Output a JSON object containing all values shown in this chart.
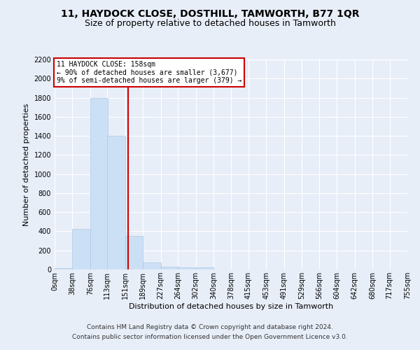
{
  "title": "11, HAYDOCK CLOSE, DOSTHILL, TAMWORTH, B77 1QR",
  "subtitle": "Size of property relative to detached houses in Tamworth",
  "xlabel": "Distribution of detached houses by size in Tamworth",
  "ylabel": "Number of detached properties",
  "bin_labels": [
    "0sqm",
    "38sqm",
    "76sqm",
    "113sqm",
    "151sqm",
    "189sqm",
    "227sqm",
    "264sqm",
    "302sqm",
    "340sqm",
    "378sqm",
    "415sqm",
    "453sqm",
    "491sqm",
    "529sqm",
    "566sqm",
    "604sqm",
    "642sqm",
    "680sqm",
    "717sqm",
    "755sqm"
  ],
  "bin_edges": [
    0,
    38,
    76,
    113,
    151,
    189,
    227,
    264,
    302,
    340,
    378,
    415,
    453,
    491,
    529,
    566,
    604,
    642,
    680,
    717,
    755
  ],
  "bar_heights": [
    15,
    425,
    1800,
    1400,
    350,
    75,
    30,
    20,
    20,
    0,
    0,
    0,
    0,
    0,
    0,
    0,
    0,
    0,
    0,
    0
  ],
  "bar_color": "#cce0f5",
  "bar_edge_color": "#aac8e8",
  "property_size": 158,
  "annotation_title": "11 HAYDOCK CLOSE: 158sqm",
  "annotation_line1": "← 90% of detached houses are smaller (3,677)",
  "annotation_line2": "9% of semi-detached houses are larger (379) →",
  "red_line_color": "#cc0000",
  "ylim_max": 2200,
  "yticks": [
    0,
    200,
    400,
    600,
    800,
    1000,
    1200,
    1400,
    1600,
    1800,
    2000,
    2200
  ],
  "footer_line1": "Contains HM Land Registry data © Crown copyright and database right 2024.",
  "footer_line2": "Contains public sector information licensed under the Open Government Licence v3.0.",
  "bg_color": "#e8eef8",
  "grid_color": "#ffffff",
  "title_fontsize": 10,
  "subtitle_fontsize": 9,
  "ylabel_fontsize": 8,
  "xlabel_fontsize": 8,
  "tick_fontsize": 7,
  "annot_fontsize": 7,
  "footer_fontsize": 6.5
}
